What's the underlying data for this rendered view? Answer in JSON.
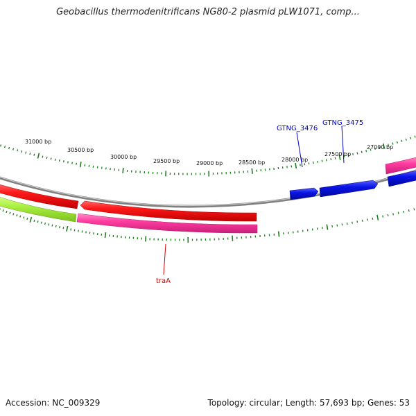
{
  "title": "Geobacillus thermodenitrificans NG80-2 plasmid pLW1071, comp...",
  "footer": {
    "accession": "Accession: NC_009329",
    "stats": "Topology: circular; Length: 57,693 bp; Genes: 53"
  },
  "ruler": {
    "tick_labels": [
      "31000 bp",
      "30500 bp",
      "30000 bp",
      "29500 bp",
      "29000 bp",
      "28500 bp",
      "28000 bp",
      "27500 bp",
      "27000 bp"
    ],
    "tick_color": "#1e7d1e"
  },
  "backbone_color": "#808080",
  "features": [
    {
      "name": "red-forward-gene-left",
      "color": "#ff1a1a",
      "track": "upper"
    },
    {
      "name": "red-forward-gene-main",
      "color": "#ff1a1a",
      "track": "upper"
    },
    {
      "name": "lime-gene",
      "color": "#aaf040",
      "track": "lower"
    },
    {
      "name": "pink-gene-main",
      "color": "#ff3ca0",
      "track": "lower"
    },
    {
      "name": "pink-gene-right",
      "color": "#ff3ca0",
      "track": "upper"
    },
    {
      "name": "blue-gene-a",
      "color": "#0a14e6",
      "track": "upper"
    },
    {
      "name": "blue-gene-b",
      "color": "#0a14e6",
      "track": "upper"
    },
    {
      "name": "blue-gene-c",
      "color": "#0a14e6",
      "track": "upper"
    }
  ],
  "gene_labels": [
    {
      "text": "GTNG_3476",
      "color": "#0000cc"
    },
    {
      "text": "GTNG_3475",
      "color": "#0000cc"
    },
    {
      "text": "traA",
      "color": "#cc0000"
    }
  ]
}
